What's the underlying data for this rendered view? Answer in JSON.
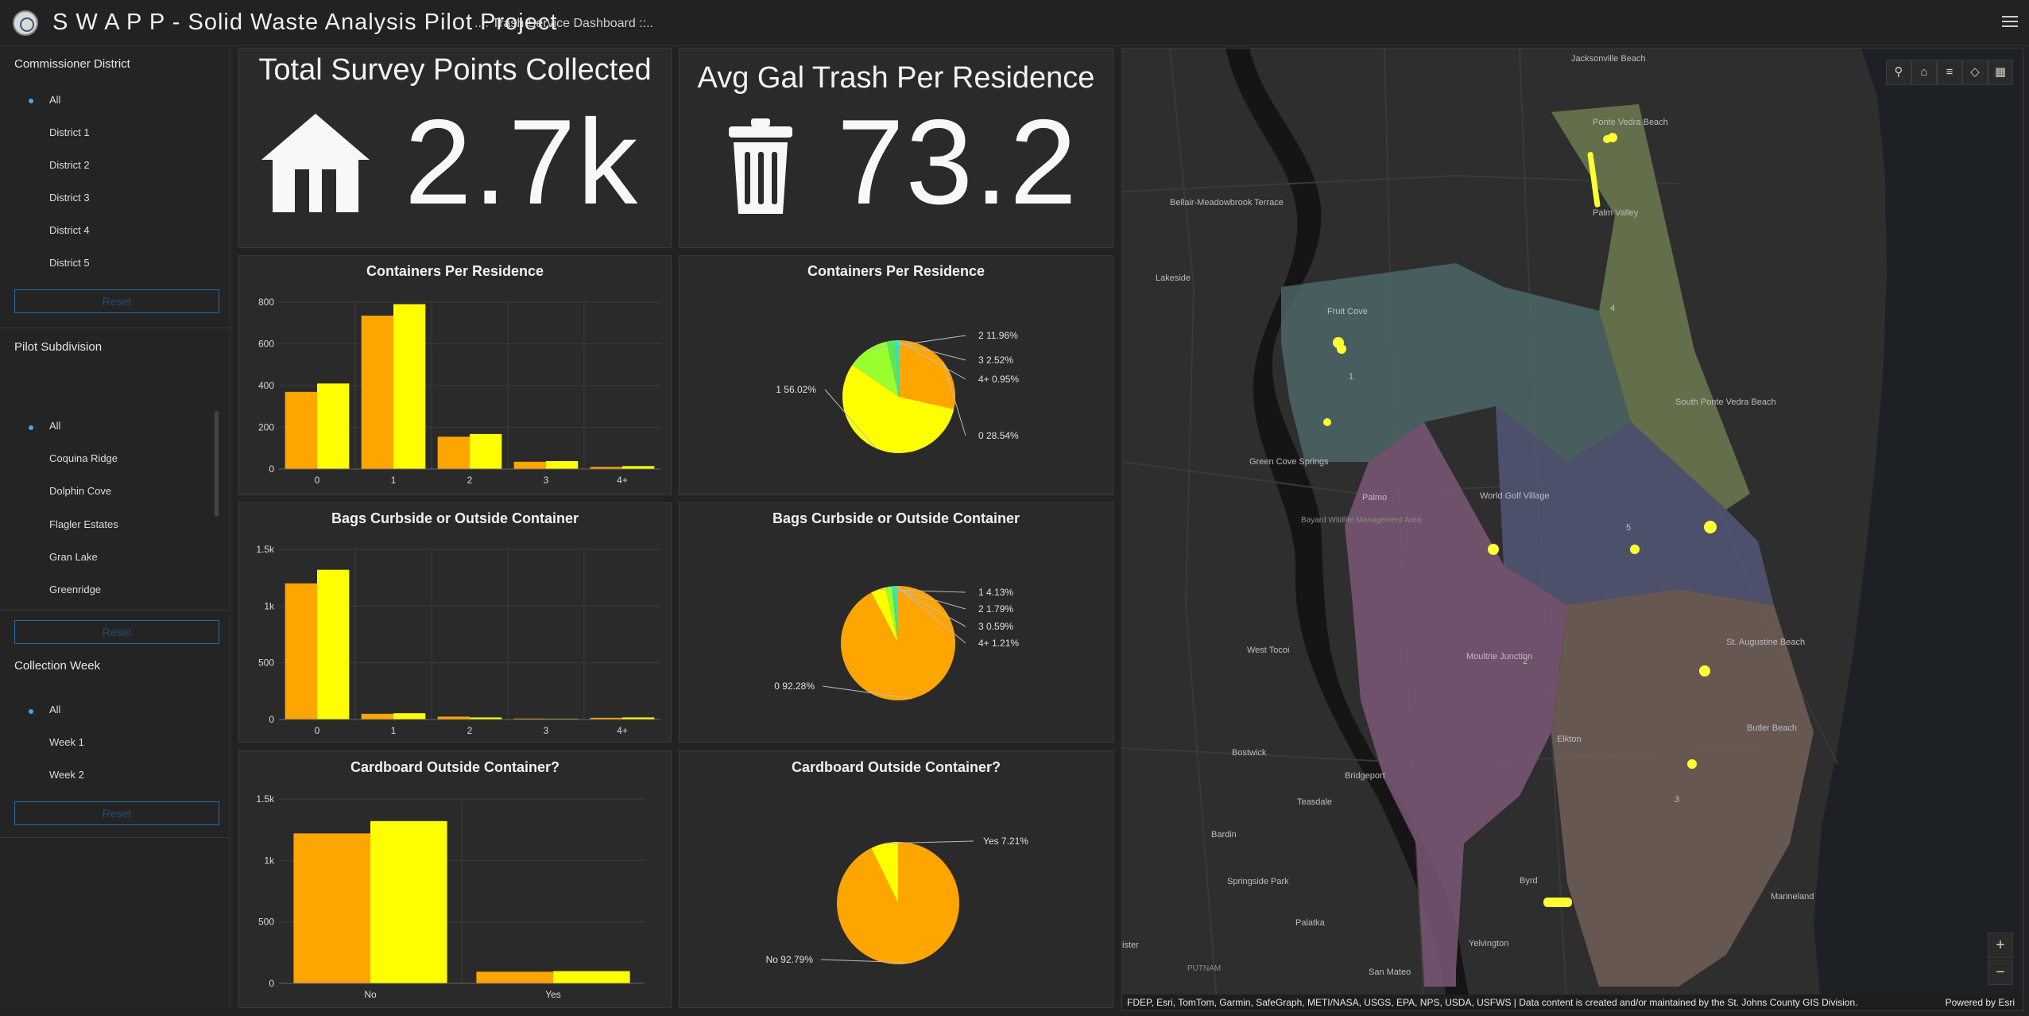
{
  "header": {
    "title": "S W A P P - Solid Waste Analysis Pilot Project",
    "subtitle": "..:: Trash Service Dashboard ::.."
  },
  "sidebar": {
    "commissioner": {
      "title": "Commissioner District",
      "options": [
        "All",
        "District 1",
        "District 2",
        "District 3",
        "District 4",
        "District 5"
      ],
      "selected": "All",
      "reset_label": "Reset"
    },
    "subdivision": {
      "title": "Pilot Subdivision",
      "options": [
        "All",
        "Coquina Ridge",
        "Dolphin Cove",
        "Flagler Estates",
        "Gran Lake",
        "Greenridge"
      ],
      "selected": "All",
      "reset_label": "Reset"
    },
    "week": {
      "title": "Collection Week",
      "options": [
        "All",
        "Week 1",
        "Week 2"
      ],
      "selected": "All",
      "reset_label": "Reset"
    }
  },
  "kpis": {
    "survey": {
      "title": "Total Survey Points Collected",
      "value": "2.7k",
      "icon": "house-icon"
    },
    "trash": {
      "title": "Avg Gal Trash Per Residence",
      "value": "73.2",
      "icon": "trash-can-icon"
    }
  },
  "colors": {
    "orange": "#FFA500",
    "yellow": "#FFFF00",
    "green": "#9AFF2E",
    "cyan": "#33E6C8"
  },
  "chart_data": [
    {
      "type": "bar",
      "title": "Containers Per Residence",
      "categories": [
        "0",
        "1",
        "2",
        "3",
        "4+"
      ],
      "series": [
        {
          "values": [
            370,
            735,
            155,
            35,
            10
          ],
          "color": "#FFA500"
        },
        {
          "values": [
            410,
            790,
            168,
            38,
            14
          ],
          "color": "#FFFF00"
        }
      ],
      "ylim": [
        0,
        800
      ],
      "yticks": [
        0,
        200,
        400,
        600,
        800
      ],
      "yticklabels": [
        "0",
        "200",
        "400",
        "600",
        "800"
      ]
    },
    {
      "type": "pie",
      "title": "Containers Per Residence",
      "slices": [
        {
          "label": "0",
          "pct": 28.54,
          "text": "0 28.54%",
          "color": "#FFA500"
        },
        {
          "label": "1",
          "pct": 56.02,
          "text": "1 56.02%",
          "color": "#FFFF00"
        },
        {
          "label": "2",
          "pct": 11.96,
          "text": "2 11.96%",
          "color": "#9AFF2E"
        },
        {
          "label": "3",
          "pct": 2.52,
          "text": "3 2.52%",
          "color": "#5CE65C"
        },
        {
          "label": "4+",
          "pct": 0.95,
          "text": "4+ 0.95%",
          "color": "#33E6C8"
        }
      ]
    },
    {
      "type": "bar",
      "title": "Bags Curbside or Outside Container",
      "categories": [
        "0",
        "1",
        "2",
        "3",
        "4+"
      ],
      "series": [
        {
          "values": [
            1200,
            50,
            25,
            8,
            15
          ],
          "color": "#FFA500"
        },
        {
          "values": [
            1320,
            55,
            18,
            6,
            18
          ],
          "color": "#FFFF00"
        }
      ],
      "ylim": [
        0,
        1500
      ],
      "yticks": [
        0,
        500,
        1000,
        1500
      ],
      "yticklabels": [
        "0",
        "500",
        "1k",
        "1.5k"
      ]
    },
    {
      "type": "pie",
      "title": "Bags Curbside or Outside Container",
      "slices": [
        {
          "label": "0",
          "pct": 92.28,
          "text": "0 92.28%",
          "color": "#FFA500"
        },
        {
          "label": "1",
          "pct": 4.13,
          "text": "1 4.13%",
          "color": "#FFFF00"
        },
        {
          "label": "2",
          "pct": 1.79,
          "text": "2 1.79%",
          "color": "#9AFF2E"
        },
        {
          "label": "3",
          "pct": 0.59,
          "text": "3 0.59%",
          "color": "#5CE65C"
        },
        {
          "label": "4+",
          "pct": 1.21,
          "text": "4+ 1.21%",
          "color": "#33E6C8"
        }
      ]
    },
    {
      "type": "bar",
      "title": "Cardboard Outside Container?",
      "categories": [
        "No",
        "Yes"
      ],
      "series": [
        {
          "values": [
            1220,
            95
          ],
          "color": "#FFA500"
        },
        {
          "values": [
            1320,
            100
          ],
          "color": "#FFFF00"
        }
      ],
      "ylim": [
        0,
        1500
      ],
      "yticks": [
        0,
        500,
        1000,
        1500
      ],
      "yticklabels": [
        "0",
        "500",
        "1k",
        "1.5k"
      ]
    },
    {
      "type": "pie",
      "title": "Cardboard Outside Container?",
      "slices": [
        {
          "label": "No",
          "pct": 92.79,
          "text": "No 92.79%",
          "color": "#FFA500"
        },
        {
          "label": "Yes",
          "pct": 7.21,
          "text": "Yes 7.21%",
          "color": "#FFFF00"
        }
      ]
    }
  ],
  "map": {
    "tools": [
      "search-icon",
      "home-icon",
      "list-icon",
      "layers-icon",
      "grid-icon"
    ],
    "zoom_in": "+",
    "zoom_out": "−",
    "attribution": "FDEP, Esri, TomTom, Garmin, SafeGraph, METI/NASA, USGS, EPA, NPS, USDA, USFWS | Data content is created and/or maintained by the St. Johns County GIS Division.",
    "powered_by": "Powered by Esri",
    "places": [
      "Jacksonville Beach",
      "Ponte Vedra Beach",
      "Palm Valley",
      "Bellair-Meadowbrook Terrace",
      "Lakeside",
      "Fruit Cove",
      "Green Cove Springs",
      "Palmo",
      "World Golf Village",
      "Bayard Wildlife Management Area",
      "West Tocoi",
      "St. Augustine Beach",
      "Moultrie Junction",
      "Elkton",
      "Butler Beach",
      "Bostwick",
      "Bridgeport",
      "Teasdale",
      "Bardin",
      "Springside Park",
      "Palatka",
      "Yelvington",
      "San Mateo",
      "Marineland",
      "South Ponte Vedra Beach",
      "Byrd",
      "PUTNAM",
      "ister"
    ],
    "district_labels": [
      "1",
      "2",
      "3",
      "4",
      "5"
    ]
  }
}
